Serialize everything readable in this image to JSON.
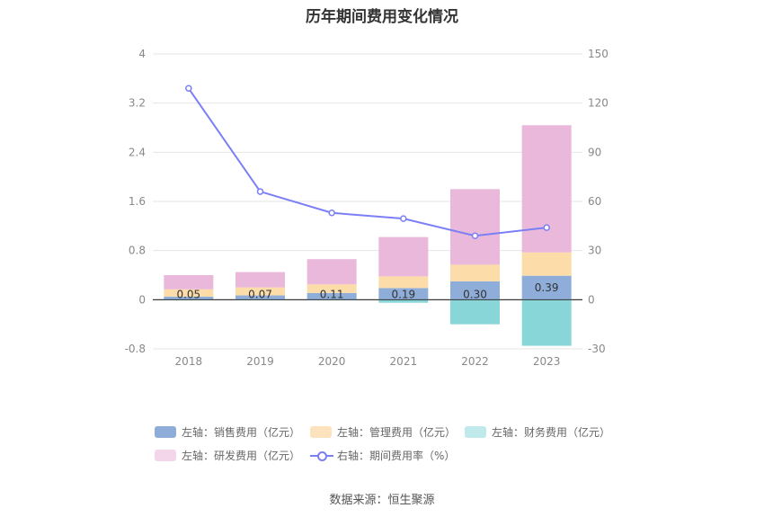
{
  "chart_data": {
    "type": "bar",
    "title": "历年期间费用变化情况",
    "categories": [
      "2018",
      "2019",
      "2020",
      "2021",
      "2022",
      "2023"
    ],
    "left_axis": {
      "ticks": [
        "4",
        "3.2",
        "2.4",
        "1.6",
        "0.8",
        "0",
        "-0.8"
      ],
      "ylim": [
        -0.8,
        4
      ]
    },
    "right_axis": {
      "ticks": [
        "150",
        "120",
        "90",
        "60",
        "30",
        "0",
        "-30"
      ],
      "ylim": [
        -30,
        150
      ]
    },
    "series": [
      {
        "name": "左轴：销售费用（亿元）",
        "kind": "bar",
        "color": "#8eadd9",
        "values": [
          0.05,
          0.07,
          0.11,
          0.19,
          0.3,
          0.39
        ],
        "labels": [
          "0.05",
          "0.07",
          "0.11",
          "0.19",
          "0.30",
          "0.39"
        ]
      },
      {
        "name": "左轴：管理费用（亿元）",
        "kind": "bar",
        "color": "#fcdca8",
        "values": [
          0.12,
          0.13,
          0.14,
          0.19,
          0.27,
          0.38
        ]
      },
      {
        "name": "左轴：财务费用（亿元）",
        "kind": "bar",
        "color": "#89d6d9",
        "values": [
          -0.01,
          -0.01,
          -0.01,
          -0.05,
          -0.4,
          -0.75
        ]
      },
      {
        "name": "左轴：研发费用（亿元）",
        "kind": "bar",
        "color": "#e9b8da",
        "values": [
          0.23,
          0.25,
          0.41,
          0.64,
          1.23,
          2.07
        ]
      },
      {
        "name": "右轴：期间费用率（%）",
        "kind": "line",
        "color": "#7b7ff5",
        "values": [
          129,
          66,
          53,
          49.5,
          39,
          44
        ]
      }
    ]
  },
  "legend": [
    {
      "label": "左轴：销售费用（亿元）",
      "color": "#8eadd9"
    },
    {
      "label": "左轴：管理费用（亿元）",
      "color": "#fde3bd"
    },
    {
      "label": "左轴：财务费用（亿元）",
      "color": "#bfe9ea"
    },
    {
      "label": "左轴：研发费用（亿元）",
      "color": "#f3d6ea"
    },
    {
      "label": "右轴：期间费用率（%）",
      "color": "#7b7ff5"
    }
  ],
  "source": "数据来源：恒生聚源"
}
